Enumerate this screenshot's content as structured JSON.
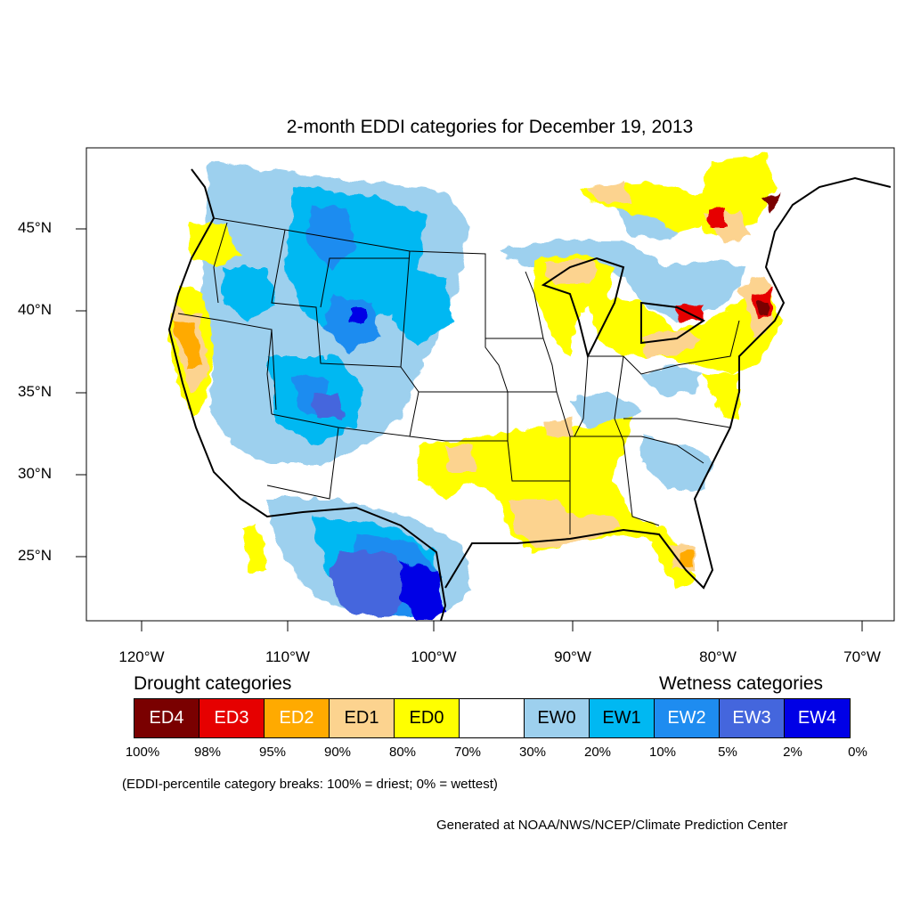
{
  "title": "2-month EDDI categories for December 19, 2013",
  "map": {
    "lat_labels": [
      "45°N",
      "40°N",
      "35°N",
      "30°N",
      "25°N"
    ],
    "lon_labels": [
      "120°W",
      "110°W",
      "100°W",
      "90°W",
      "80°W",
      "70°W"
    ]
  },
  "legend": {
    "drought_heading": "Drought categories",
    "wetness_heading": "Wetness categories",
    "categories": [
      {
        "label": "ED4",
        "color": "#7a0000",
        "text_color": "#ffffff"
      },
      {
        "label": "ED3",
        "color": "#e60000",
        "text_color": "#ffffff"
      },
      {
        "label": "ED2",
        "color": "#ffaa00",
        "text_color": "#ffffff"
      },
      {
        "label": "ED1",
        "color": "#fcd38f",
        "text_color": "#000000"
      },
      {
        "label": "ED0",
        "color": "#ffff00",
        "text_color": "#000000"
      },
      {
        "label": "",
        "color": "#ffffff",
        "text_color": "#000000"
      },
      {
        "label": "EW0",
        "color": "#9dd0ee",
        "text_color": "#000000"
      },
      {
        "label": "EW1",
        "color": "#00b8f2",
        "text_color": "#000000"
      },
      {
        "label": "EW2",
        "color": "#1e8cf0",
        "text_color": "#ffffff"
      },
      {
        "label": "EW3",
        "color": "#4466dd",
        "text_color": "#ffffff"
      },
      {
        "label": "EW4",
        "color": "#0000e6",
        "text_color": "#ffffff"
      }
    ],
    "breaks": [
      "100%",
      "98%",
      "95%",
      "90%",
      "80%",
      "70%",
      "30%",
      "20%",
      "10%",
      "5%",
      "2%",
      "0%"
    ]
  },
  "note": "(EDDI-percentile category breaks: 100% = driest; 0% = wettest)",
  "credit": "Generated at NOAA/NWS/NCEP/Climate Prediction Center"
}
